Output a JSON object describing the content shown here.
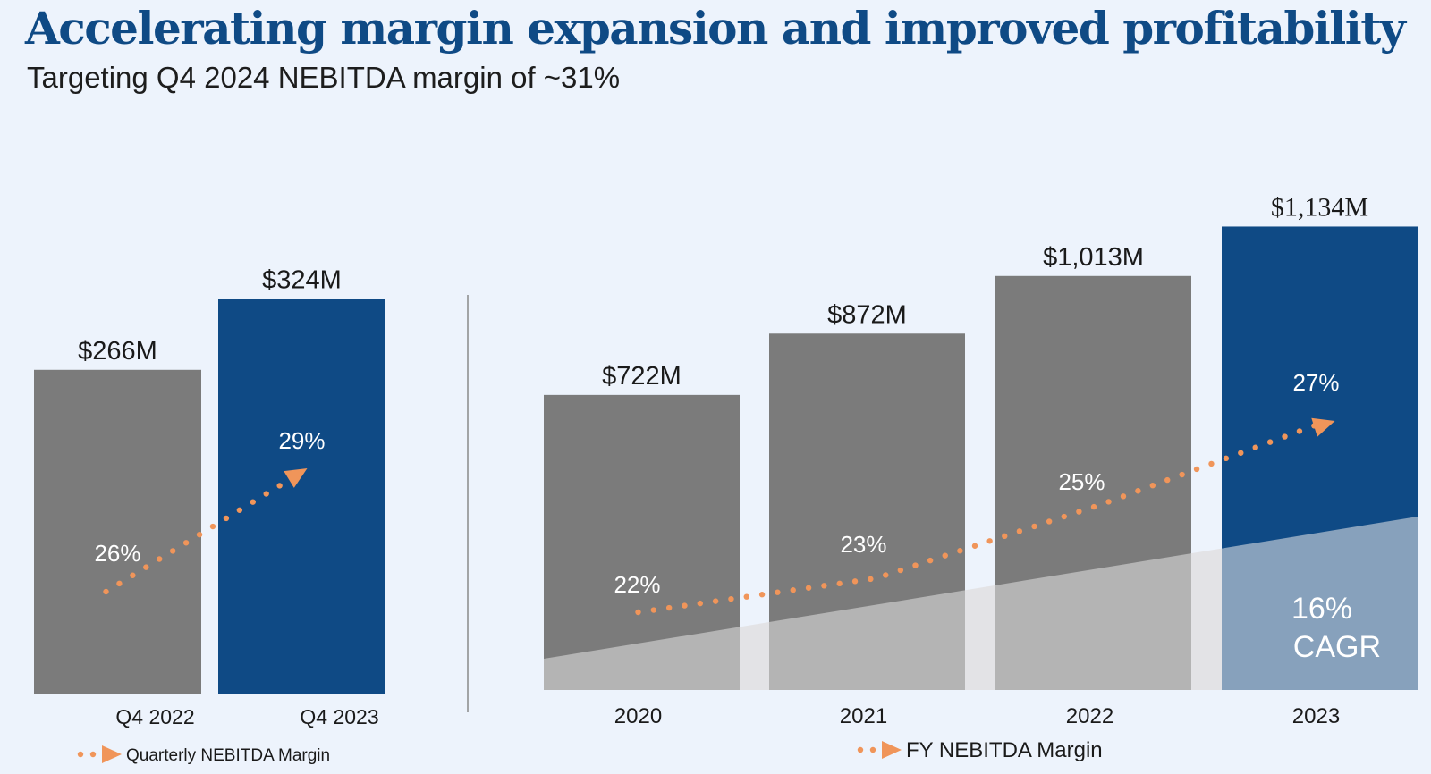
{
  "header": {
    "title": "Accelerating margin expansion and improved profitability",
    "subtitle": "Targeting Q4 2024 NEBITDA margin of ~31%"
  },
  "colors": {
    "background": "#edf3fc",
    "gray_bar": "#7b7b7b",
    "blue_bar": "#0f4a85",
    "margin_line": "#f0955a",
    "cagr_wedge_gray": "#b4b4b4",
    "cagr_wedge_blue": "#87a1bc",
    "cagr_band_gap": "#e3e3e6",
    "divider": "#8a8a8a"
  },
  "chart_data": [
    {
      "type": "bar",
      "categories": [
        "Q4 2022",
        "Q4 2023"
      ],
      "values": [
        266,
        324
      ],
      "value_labels": [
        "$266M",
        "$324M"
      ],
      "margins": [
        26,
        29
      ],
      "margin_labels": [
        "26%",
        "29%"
      ],
      "highlight": [
        false,
        true
      ],
      "legend": "Quarterly NEBITDA Margin",
      "ylim": [
        0,
        405
      ]
    },
    {
      "type": "bar",
      "categories": [
        "2020",
        "2021",
        "2022",
        "2023"
      ],
      "values": [
        722,
        872,
        1013,
        1134
      ],
      "value_labels": [
        "$722M",
        "$872M",
        "$1,013M",
        "$1,134M"
      ],
      "margins": [
        22,
        23,
        25,
        27
      ],
      "margin_labels": [
        "22%",
        "23%",
        "25%",
        "27%"
      ],
      "highlight": [
        false,
        false,
        false,
        true
      ],
      "legend": "FY NEBITDA Margin",
      "cagr": {
        "value": "16%",
        "label": "CAGR"
      },
      "ylim": [
        0,
        1170
      ]
    }
  ]
}
